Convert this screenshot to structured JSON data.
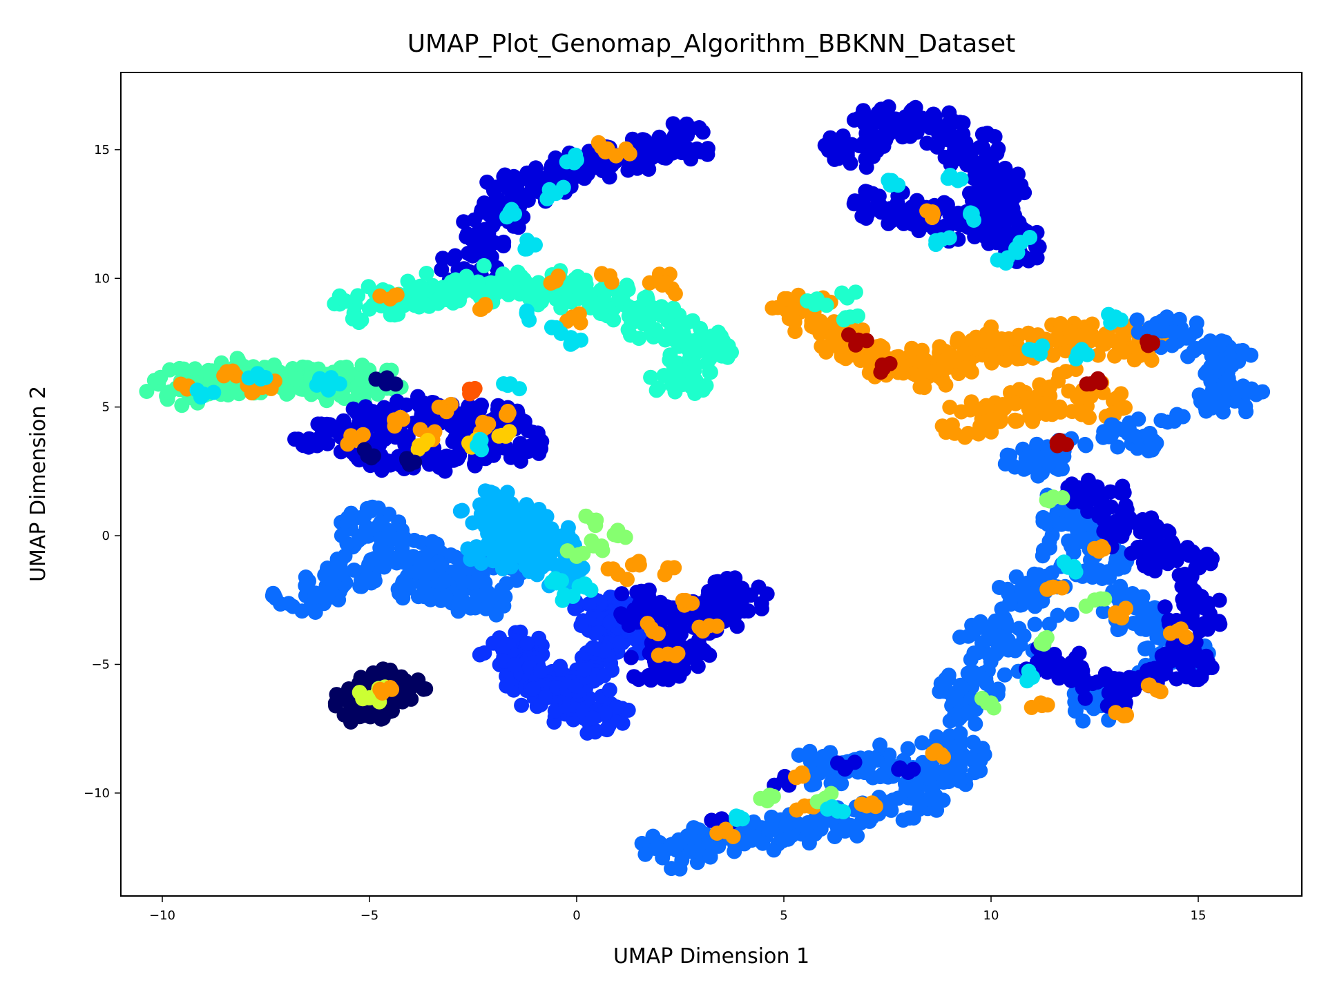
{
  "chart_data": {
    "type": "scatter",
    "title": "UMAP_Plot_Genomap_Algorithm_BBKNN_Dataset",
    "xlabel": "UMAP Dimension 1",
    "ylabel": "UMAP Dimension 2",
    "xlim": [
      -11,
      17.5
    ],
    "ylim": [
      -14,
      18
    ],
    "xticks": [
      -10,
      -5,
      0,
      5,
      10,
      15
    ],
    "xtick_labels": [
      "−10",
      "−5",
      "0",
      "5",
      "10",
      "15"
    ],
    "yticks": [
      -10,
      -5,
      0,
      5,
      10,
      15
    ],
    "ytick_labels": [
      "−10",
      "−5",
      "0",
      "5",
      "10",
      "15"
    ],
    "grid": false,
    "legend": "none",
    "colormap": "jet",
    "clusters": [
      {
        "id": "upper-arc",
        "color": "#0000dd",
        "points": [
          [
            -2.5,
            10.5
          ],
          [
            -2,
            12
          ],
          [
            -1.5,
            13.3
          ],
          [
            -0.5,
            14
          ],
          [
            0.5,
            14.5
          ],
          [
            1.5,
            14.9
          ],
          [
            2.5,
            15.3
          ]
        ],
        "accents": [
          {
            "color": "#00e0f0",
            "points": [
              [
                -1.5,
                12.5
              ],
              [
                -0.5,
                13.3
              ],
              [
                -1,
                11.3
              ],
              [
                0,
                14.6
              ]
            ]
          },
          {
            "color": "#ff9900",
            "points": [
              [
                0.6,
                15.1
              ],
              [
                1.2,
                15
              ]
            ]
          }
        ]
      },
      {
        "id": "teal-band",
        "color": "#1effcc",
        "points": [
          [
            -5,
            9
          ],
          [
            -3.5,
            9.5
          ],
          [
            -2,
            9.8
          ],
          [
            -0.5,
            9.6
          ],
          [
            1,
            9
          ],
          [
            2,
            8.2
          ],
          [
            3,
            7.3
          ],
          [
            2.5,
            6.2
          ]
        ],
        "accents": [
          {
            "color": "#ff9900",
            "points": [
              [
                -4.5,
                9.2
              ],
              [
                -2.3,
                8.8
              ],
              [
                -0.5,
                9.9
              ],
              [
                0.8,
                10.1
              ],
              [
                2,
                10
              ],
              [
                2.3,
                9.6
              ],
              [
                -0.1,
                8.5
              ]
            ]
          },
          {
            "color": "#00e0f0",
            "points": [
              [
                -0.6,
                8.1
              ],
              [
                0.1,
                7.6
              ],
              [
                -1.2,
                8.6
              ]
            ]
          }
        ]
      },
      {
        "id": "left-band",
        "color": "#3fffa8",
        "points": [
          [
            -9.6,
            5.8
          ],
          [
            -8.8,
            6.1
          ],
          [
            -8,
            6.2
          ],
          [
            -7,
            6
          ],
          [
            -6,
            6
          ],
          [
            -5,
            5.9
          ]
        ],
        "accents": [
          {
            "color": "#ff9900",
            "points": [
              [
                -9.4,
                5.7
              ],
              [
                -8.3,
                6.4
              ],
              [
                -7.4,
                5.8
              ],
              [
                -7.8,
                5.6
              ]
            ]
          },
          {
            "color": "#00e0f0",
            "points": [
              [
                -7.7,
                6.3
              ],
              [
                -6.2,
                6.1
              ],
              [
                -5.9,
                5.9
              ],
              [
                -9,
                5.5
              ]
            ]
          },
          {
            "color": "#000080",
            "points": [
              [
                -4.6,
                5.9
              ]
            ]
          }
        ]
      },
      {
        "id": "mixed-oval",
        "color": "#0000dd",
        "points": [
          [
            -6,
            3.7
          ],
          [
            -5,
            4.3
          ],
          [
            -4,
            4.7
          ],
          [
            -3,
            4.5
          ],
          [
            -2,
            4.5
          ],
          [
            -1.6,
            3.6
          ],
          [
            -3,
            3.2
          ],
          [
            -4.5,
            3.2
          ]
        ],
        "accents": [
          {
            "color": "#ff9900",
            "points": [
              [
                -5.3,
                3.7
              ],
              [
                -4.4,
                4.5
              ],
              [
                -3.6,
                3.9
              ],
              [
                -2.2,
                4.2
              ],
              [
                -1.7,
                4.7
              ],
              [
                -3.2,
                5
              ]
            ]
          },
          {
            "color": "#ffcc00",
            "points": [
              [
                -2.6,
                3.6
              ],
              [
                -1.8,
                3.9
              ],
              [
                -3.8,
                3.5
              ]
            ]
          },
          {
            "color": "#000080",
            "points": [
              [
                -4.9,
                3.1
              ],
              [
                -4.1,
                3
              ]
            ]
          },
          {
            "color": "#ff5500",
            "points": [
              [
                -2.5,
                5.6
              ]
            ]
          },
          {
            "color": "#00e0f0",
            "points": [
              [
                -1.6,
                5.9
              ],
              [
                -2.4,
                3.5
              ]
            ]
          }
        ]
      },
      {
        "id": "left-mid",
        "color": "#0a6cff",
        "points": [
          [
            -6.5,
            -2.3
          ],
          [
            -5.5,
            -1.3
          ],
          [
            -5,
            0.4
          ],
          [
            -4,
            -0.8
          ],
          [
            -3,
            -1.5
          ],
          [
            -2,
            -1.2
          ],
          [
            -3.5,
            -2
          ],
          [
            -2.5,
            -2.5
          ]
        ]
      },
      {
        "id": "center-lightblue",
        "color": "#00b4ff",
        "points": [
          [
            -2,
            1
          ],
          [
            -1.5,
            0.5
          ],
          [
            -0.8,
            -0.2
          ],
          [
            -1.8,
            -0.6
          ],
          [
            -0.5,
            -1.2
          ]
        ],
        "accents": [
          {
            "color": "#86ff70",
            "points": [
              [
                0.4,
                0.6
              ],
              [
                0.6,
                -0.4
              ],
              [
                0,
                -0.8
              ],
              [
                1,
                0
              ]
            ]
          },
          {
            "color": "#00e0f0",
            "points": [
              [
                -0.6,
                -1.8
              ],
              [
                -0.3,
                -2.3
              ],
              [
                0.2,
                -2
              ]
            ]
          }
        ]
      },
      {
        "id": "center-blob",
        "color": "#0a33ff",
        "points": [
          [
            -1.5,
            -4.5
          ],
          [
            -1,
            -5.5
          ],
          [
            -0.5,
            -6.5
          ],
          [
            0.5,
            -7
          ],
          [
            0.2,
            -5.5
          ],
          [
            1,
            -4
          ],
          [
            0.5,
            -3
          ],
          [
            1.5,
            -3.2
          ]
        ]
      },
      {
        "id": "center-right-arm",
        "color": "#0000dd",
        "points": [
          [
            1.5,
            -2.8
          ],
          [
            2.5,
            -3.2
          ],
          [
            3.4,
            -3
          ],
          [
            3.8,
            -2.4
          ],
          [
            2.5,
            -4.5
          ],
          [
            2,
            -5
          ]
        ],
        "accents": [
          {
            "color": "#ff9900",
            "points": [
              [
                1.5,
                -1
              ],
              [
                2.2,
                -1.3
              ],
              [
                1.8,
                -3.6
              ],
              [
                2.6,
                -2.7
              ],
              [
                3.2,
                -3.5
              ],
              [
                2.2,
                -4.6
              ],
              [
                1,
                -1.5
              ]
            ]
          }
        ]
      },
      {
        "id": "small-stick",
        "color": "#000060",
        "points": [
          [
            -5.3,
            -6.6
          ],
          [
            -5,
            -6.4
          ],
          [
            -4.7,
            -6.1
          ],
          [
            -4.4,
            -5.8
          ]
        ],
        "accents": [
          {
            "color": "#ccff33",
            "points": [
              [
                -5,
                -6.3
              ],
              [
                -4.8,
                -6.1
              ]
            ]
          },
          {
            "color": "#ff9900",
            "points": [
              [
                -4.5,
                -5.9
              ]
            ]
          }
        ]
      },
      {
        "id": "top-right-blob",
        "color": "#0000dd",
        "points": [
          [
            6.8,
            15
          ],
          [
            7.5,
            16
          ],
          [
            8.5,
            16
          ],
          [
            9.5,
            15
          ],
          [
            10.3,
            13.5
          ],
          [
            10,
            12.5
          ],
          [
            9,
            12.2
          ],
          [
            7.5,
            12.8
          ],
          [
            10.6,
            11.2
          ]
        ],
        "accents": [
          {
            "color": "#00e0f0",
            "points": [
              [
                7.6,
                13.8
              ],
              [
                9.2,
                13.8
              ],
              [
                9.5,
                12.5
              ],
              [
                8.8,
                11.5
              ],
              [
                10.4,
                10.8
              ],
              [
                10.7,
                11.4
              ]
            ]
          },
          {
            "color": "#ff9900",
            "points": [
              [
                8.6,
                12.5
              ]
            ]
          }
        ]
      },
      {
        "id": "orange-band",
        "color": "#ff9900",
        "points": [
          [
            5.5,
            8.6
          ],
          [
            6.5,
            7.5
          ],
          [
            7.5,
            6.8
          ],
          [
            8.5,
            6.5
          ],
          [
            9.5,
            7
          ],
          [
            10.5,
            7.5
          ],
          [
            12,
            7.6
          ],
          [
            13.5,
            7.5
          ],
          [
            9.5,
            4.5
          ],
          [
            11,
            5
          ],
          [
            12.5,
            5.2
          ]
        ],
        "accents": [
          {
            "color": "#1effcc",
            "points": [
              [
                5.8,
                9.2
              ],
              [
                6.5,
                9.3
              ],
              [
                6.6,
                8.5
              ]
            ]
          },
          {
            "color": "#aa0000",
            "points": [
              [
                6.8,
                7.6
              ],
              [
                7.4,
                6.5
              ],
              [
                11.6,
                3.5
              ],
              [
                13.9,
                7.5
              ],
              [
                12.4,
                5.9
              ]
            ]
          },
          {
            "color": "#00e0f0",
            "points": [
              [
                11,
                7.2
              ],
              [
                13,
                8.5
              ],
              [
                12.1,
                7.1
              ]
            ]
          }
        ]
      },
      {
        "id": "right-big",
        "color": "#0a6cff",
        "points": [
          [
            14.2,
            8
          ],
          [
            15.5,
            7
          ],
          [
            15.8,
            5.5
          ],
          [
            13.5,
            4
          ],
          [
            11,
            3
          ],
          [
            12,
            0.5
          ],
          [
            11,
            -2
          ],
          [
            10,
            -4
          ],
          [
            9.5,
            -6
          ],
          [
            9,
            -8.5
          ],
          [
            12.5,
            -1
          ],
          [
            13.5,
            -3
          ],
          [
            14.5,
            -4.5
          ],
          [
            12.5,
            -6.5
          ]
        ]
      },
      {
        "id": "right-dark",
        "color": "#0000dd",
        "points": [
          [
            12.5,
            1.5
          ],
          [
            13.5,
            0
          ],
          [
            14.5,
            -1
          ],
          [
            15,
            -3
          ],
          [
            14.5,
            -5
          ],
          [
            13,
            -6
          ],
          [
            11.5,
            -5
          ]
        ],
        "accents": [
          {
            "color": "#ff9900",
            "points": [
              [
                11.5,
                -2
              ],
              [
                12.5,
                -0.5
              ],
              [
                13,
                -3
              ],
              [
                14.5,
                -3.7
              ],
              [
                11.2,
                -6.5
              ],
              [
                13.2,
                -7
              ],
              [
                14,
                -6
              ]
            ]
          },
          {
            "color": "#86ff70",
            "points": [
              [
                11.5,
                1.5
              ],
              [
                12.5,
                -2.5
              ],
              [
                11.3,
                -4
              ],
              [
                10,
                -6.5
              ]
            ]
          },
          {
            "color": "#00e0f0",
            "points": [
              [
                11,
                -5.5
              ],
              [
                12,
                -1.2
              ]
            ]
          }
        ]
      },
      {
        "id": "bottom-tail",
        "color": "#0a6cff",
        "points": [
          [
            2.3,
            -12.3
          ],
          [
            3.5,
            -11.8
          ],
          [
            5,
            -11.5
          ],
          [
            6.5,
            -11
          ],
          [
            8,
            -10.3
          ],
          [
            9,
            -9
          ],
          [
            6,
            -9
          ],
          [
            7.5,
            -8.8
          ]
        ],
        "accents": [
          {
            "color": "#0000dd",
            "points": [
              [
                5,
                -9.5
              ],
              [
                6.5,
                -9
              ],
              [
                8,
                -9.2
              ],
              [
                3.5,
                -11
              ]
            ]
          },
          {
            "color": "#ff9900",
            "points": [
              [
                3.6,
                -11.5
              ],
              [
                5.5,
                -10.5
              ],
              [
                7,
                -10.5
              ],
              [
                8.8,
                -8.5
              ],
              [
                5.3,
                -9.4
              ]
            ]
          },
          {
            "color": "#86ff70",
            "points": [
              [
                4.6,
                -10.3
              ],
              [
                6,
                -10.2
              ]
            ]
          },
          {
            "color": "#00e0f0",
            "points": [
              [
                6.3,
                -10.7
              ],
              [
                4,
                -11
              ]
            ]
          }
        ]
      }
    ]
  }
}
